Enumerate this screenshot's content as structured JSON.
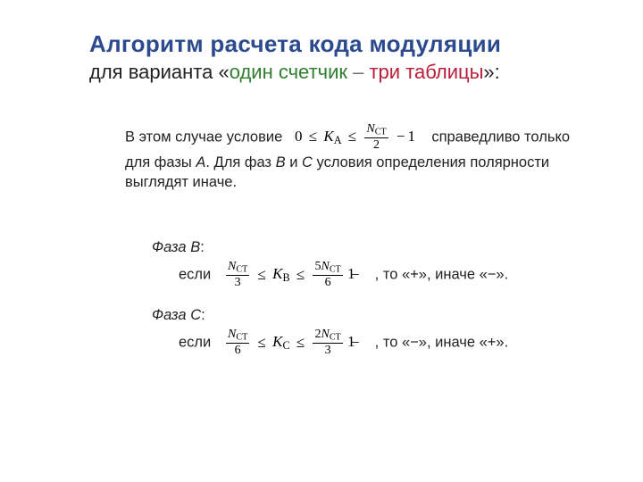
{
  "colors": {
    "title_main": "#2c4a8e",
    "accent_green": "#2f7f2f",
    "accent_red": "#b81d3a",
    "accent_sep": "#6e6e6e",
    "text": "#222222",
    "background": "#ffffff",
    "formula_text": "#000000"
  },
  "typography": {
    "title_size_pt": 20,
    "subtitle_size_pt": 17,
    "body_size_pt": 12.5,
    "formula_family": "Cambria Math / Times New Roman"
  },
  "title": {
    "line1": "Алгоритм расчета кода модуляции",
    "line2_pre": "для варианта «",
    "line2_green": "один счетчик",
    "line2_sep": " – ",
    "line2_red": "три таблицы",
    "line2_post": "»:"
  },
  "body": {
    "pre": "В этом случае условие",
    "post": "справедливо только для фазы ",
    "phaseA_name": "A",
    "post2": ". Для фаз ",
    "phaseB_name": "B",
    "post3": " и ",
    "phaseC_name": "C",
    "post4": " условия определения полярности выглядят иначе."
  },
  "formulas": {
    "main": {
      "lhs_const": "0",
      "rel1": "≤",
      "mid_var": "K",
      "mid_sub": "A",
      "rel2": "≤",
      "frac_num_var": "N",
      "frac_num_sub": "CT",
      "frac_den": "2",
      "tail_op": "−",
      "tail_const": "1"
    },
    "phaseB": {
      "title_label": "Фаза ",
      "title_name": "B",
      "title_colon": ":",
      "if_word": "если",
      "left_frac_num_var": "N",
      "left_frac_num_sub": "CT",
      "left_frac_den": "3",
      "rel1": "≤",
      "mid_var": "K",
      "mid_sub": "B",
      "rel2": "≤",
      "right_coeff": "5",
      "right_frac_num_var": "N",
      "right_frac_num_sub": "CT",
      "right_frac_den": "6",
      "tail_op": "−",
      "tail_const": "1",
      "then_text": ", то «+», иначе «−».",
      "overlay_char": "1"
    },
    "phaseC": {
      "title_label": "Фаза ",
      "title_name": "C",
      "title_colon": ":",
      "if_word": "если",
      "left_frac_num_var": "N",
      "left_frac_num_sub": "CT",
      "left_frac_den": "6",
      "rel1": "≤",
      "mid_var": "K",
      "mid_sub": "C",
      "rel2": "≤",
      "right_coeff": "2",
      "right_frac_num_var": "N",
      "right_frac_num_sub": "CT",
      "right_frac_den": "3",
      "tail_op": "−",
      "tail_const": "1",
      "then_text": ", то «−», иначе «+».",
      "overlay_char": "1"
    }
  }
}
